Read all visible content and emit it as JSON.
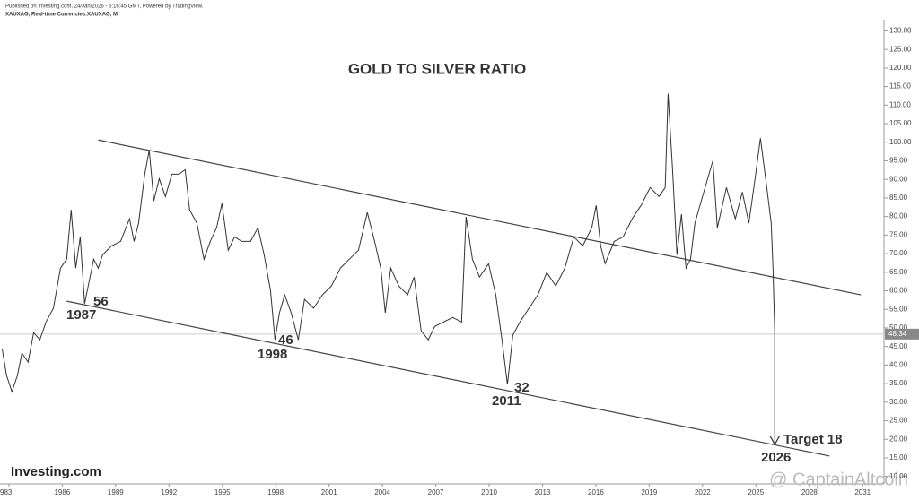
{
  "header": {
    "published": "Published on Investing.com, 24/Jan/2026 - 6:16:45 GMT, Powered by TradingView.",
    "symbol": "XAUXAG, Real-time Currencies:XAUXAG, M"
  },
  "logo": "Investing.com",
  "watermark": "@ CaptainAltcoin",
  "chart_data": {
    "type": "line",
    "title": "GOLD TO SILVER RATIO",
    "color": "#333333",
    "x": [
      1982.62,
      1982.87,
      1983.17,
      1983.48,
      1983.73,
      1984.08,
      1984.39,
      1984.74,
      1985.09,
      1985.5,
      1985.9,
      1986.25,
      1986.5,
      1986.76,
      1987.01,
      1987.26,
      1987.51,
      1987.77,
      1988.02,
      1988.27,
      1988.77,
      1989.28,
      1989.78,
      1990.04,
      1990.29,
      1990.64,
      1990.89,
      1991.15,
      1991.45,
      1991.8,
      1992.16,
      1992.56,
      1992.91,
      1993.16,
      1993.57,
      1993.97,
      1994.32,
      1994.68,
      1994.98,
      1995.33,
      1995.69,
      1996.09,
      1996.59,
      1997.0,
      1997.35,
      1997.71,
      1997.96,
      1998.21,
      1998.51,
      1998.87,
      1999.27,
      1999.62,
      2000.13,
      2000.63,
      2001.14,
      2001.64,
      2002.14,
      2002.65,
      2003.15,
      2003.56,
      2003.91,
      2004.16,
      2004.47,
      2004.92,
      2005.42,
      2005.78,
      2006.18,
      2006.58,
      2006.94,
      2007.44,
      2007.95,
      2008.45,
      2008.7,
      2009.06,
      2009.46,
      2009.97,
      2010.37,
      2010.72,
      2011.03,
      2011.33,
      2011.73,
      2012.24,
      2012.74,
      2013.24,
      2013.75,
      2014.25,
      2014.76,
      2015.26,
      2015.77,
      2016.02,
      2016.27,
      2016.52,
      2017.03,
      2017.53,
      2018.04,
      2018.54,
      2019.05,
      2019.55,
      2019.9,
      2020.06,
      2020.31,
      2020.56,
      2020.81,
      2021.07,
      2021.32,
      2021.57,
      2022.07,
      2022.58,
      2022.83,
      2023.34,
      2023.84,
      2024.24,
      2024.6,
      2024.95,
      2025.25,
      2025.61,
      2025.86,
      2025.96,
      2026.06
    ],
    "values": [
      44.4,
      37.2,
      32.8,
      37.2,
      43.2,
      40.8,
      48.7,
      46.8,
      51.6,
      55.3,
      66.1,
      68.5,
      81.8,
      66.1,
      74.5,
      56.5,
      62.5,
      68.5,
      66.1,
      69.7,
      72.1,
      73.3,
      79.4,
      73.3,
      78.2,
      91.4,
      97.9,
      84.2,
      90.2,
      85.4,
      91.4,
      91.4,
      92.6,
      81.8,
      78.2,
      68.5,
      73.3,
      77,
      83.5,
      70.9,
      74.5,
      73.3,
      73.3,
      77,
      69.7,
      60.1,
      46.8,
      54.1,
      58.9,
      54.1,
      46.8,
      57.7,
      55.3,
      58.9,
      61.3,
      66.1,
      68.5,
      70.9,
      81.1,
      73.3,
      66.1,
      54.1,
      66.1,
      61.3,
      58.9,
      63.7,
      49.2,
      46.8,
      50.4,
      51.6,
      52.8,
      51.6,
      79.9,
      68.5,
      63.7,
      67.3,
      58.9,
      46.8,
      34.8,
      48,
      51.6,
      55.3,
      58.9,
      64.9,
      61.3,
      66.1,
      74.5,
      72.1,
      77,
      83,
      72.1,
      67.3,
      73.3,
      74.5,
      79.4,
      83,
      87.8,
      85.4,
      87.8,
      113.1,
      92.6,
      69.7,
      80.6,
      66.1,
      68.5,
      78.2,
      86.6,
      95,
      77,
      87.8,
      79.4,
      86.6,
      78.2,
      90.2,
      101.1,
      87.8,
      78.2,
      66.1,
      48.34
    ],
    "xlim": [
      1982.5,
      2032.2
    ],
    "ylim": [
      8,
      133
    ],
    "xticks": [
      {
        "value": 1983,
        "label": "983"
      },
      1986,
      1989,
      1992,
      1995,
      1998,
      2001,
      2004,
      2007,
      2010,
      2013,
      2016,
      2019,
      2022,
      2025,
      2028,
      2031
    ],
    "yticks": [
      {
        "value": 10,
        "label": "10.00"
      },
      {
        "value": 15,
        "label": "15.00"
      },
      {
        "value": 20,
        "label": "20.00"
      },
      {
        "value": 25,
        "label": "25.00"
      },
      {
        "value": 30,
        "label": "30.00"
      },
      {
        "value": 35,
        "label": "35.00"
      },
      {
        "value": 40,
        "label": "40.00"
      },
      {
        "value": 45,
        "label": "45.00"
      },
      {
        "value": 50,
        "label": "50.00"
      },
      {
        "value": 55,
        "label": "55.00"
      },
      {
        "value": 60,
        "label": "60.00"
      },
      {
        "value": 65,
        "label": "65.00"
      },
      {
        "value": 70,
        "label": "70.00"
      },
      {
        "value": 75,
        "label": "75.00"
      },
      {
        "value": 80,
        "label": "80.00"
      },
      {
        "value": 85,
        "label": "85.00"
      },
      {
        "value": 90,
        "label": "90.00"
      },
      {
        "value": 95,
        "label": "95.00"
      },
      {
        "value": 100,
        "label": "100.00"
      },
      {
        "value": 105,
        "label": "105.00"
      },
      {
        "value": 110,
        "label": "110.00"
      },
      {
        "value": 115,
        "label": "115.00"
      },
      {
        "value": 120,
        "label": "120.00"
      },
      {
        "value": 125,
        "label": "125.00"
      },
      {
        "value": 130,
        "label": "130.00"
      }
    ],
    "trendlines": [
      {
        "x": [
          1988.02,
          2030.9
        ],
        "y": [
          100.6,
          58.9
        ]
      },
      {
        "x": [
          1986.25,
          2029.14
        ],
        "y": [
          57.2,
          15.5
        ]
      }
    ],
    "target_arrow": {
      "x": 2026.06,
      "y": [
        48.34,
        18.6
      ]
    },
    "annotations": [
      "56",
      "1987",
      "46",
      "1998",
      "32",
      "2011",
      "Target 18",
      "2026"
    ]
  }
}
